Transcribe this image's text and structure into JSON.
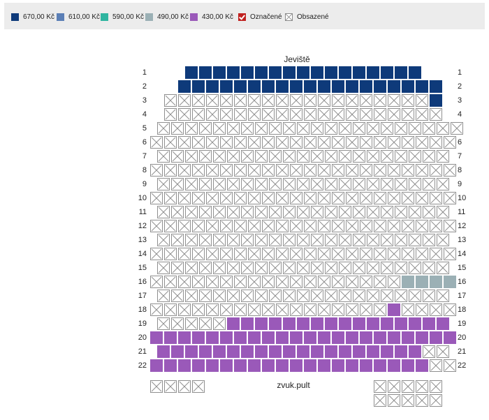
{
  "legend": {
    "items": [
      {
        "label": "670,00 Kč",
        "color": "#0e3a7a",
        "kind": "price",
        "icon": "price-swatch"
      },
      {
        "label": "610,00 Kč",
        "color": "#5b7fb6",
        "kind": "price",
        "icon": "price-swatch"
      },
      {
        "label": "590,00 Kč",
        "color": "#2fb5a0",
        "kind": "price",
        "icon": "price-swatch"
      },
      {
        "label": "490,00 Kč",
        "color": "#9bb0b5",
        "kind": "price",
        "icon": "price-swatch"
      },
      {
        "label": "430,00 Kč",
        "color": "#9a59b9",
        "kind": "price",
        "icon": "price-swatch"
      },
      {
        "label": "Označené",
        "color": "#c0211f",
        "kind": "selected",
        "icon": "check-icon"
      },
      {
        "label": "Obsazené",
        "color": "#ffffff",
        "kind": "occupied",
        "icon": "occupied-icon"
      }
    ]
  },
  "stage_label": "Jeviště",
  "sound_desk_label": "zvuk.pult",
  "rows": [
    {
      "label": "1",
      "seats": "BBBBBBBBBBBBBBBBB"
    },
    {
      "label": "2",
      "seats": "BBBBBBBBBBBBBBBBBBB"
    },
    {
      "label": "3",
      "seats": "XXXXXXXXXXXXXXXXXXXB"
    },
    {
      "label": "4",
      "seats": "XXXXXXXXXXXXXXXXXXXX"
    },
    {
      "label": "5",
      "seats": "XXXXXXXXXXXXXXXXXXXXXX"
    },
    {
      "label": "6",
      "seats": "XXXXXXXXXXXXXXXXXXXXXX"
    },
    {
      "label": "7",
      "seats": "XXXXXXXXXXXXXXXXXXXXX"
    },
    {
      "label": "8",
      "seats": "XXXXXXXXXXXXXXXXXXXXXX"
    },
    {
      "label": "9",
      "seats": "XXXXXXXXXXXXXXXXXXXXX"
    },
    {
      "label": "10",
      "seats": "XXXXXXXXXXXXXXXXXXXXXX"
    },
    {
      "label": "11",
      "seats": "XXXXXXXXXXXXXXXXXXXXX"
    },
    {
      "label": "12",
      "seats": "XXXXXXXXXXXXXXXXXXXXXX"
    },
    {
      "label": "13",
      "seats": "XXXXXXXXXXXXXXXXXXXXX"
    },
    {
      "label": "14",
      "seats": "XXXXXXXXXXXXXXXXXXXXXX"
    },
    {
      "label": "15",
      "seats": "XXXXXXXXXXXXXXXXXXXXX"
    },
    {
      "label": "16",
      "seats": "XXXXXXXXXXXXXXXXXXGGGG"
    },
    {
      "label": "17",
      "seats": "XXXXXXXXXXXXXXXXXXXXX"
    },
    {
      "label": "18",
      "seats": "XXXXXXXXXXXXXXXXXPXXXX"
    },
    {
      "label": "19",
      "seats": "XXXXXPPPPPPPPPPPPPPPP"
    },
    {
      "label": "20",
      "seats": "PPPPPPPPPPPPPPPPPPPPPP"
    },
    {
      "label": "21",
      "seats": "PPPPPPPPPPPPPPPPPPPXX"
    },
    {
      "label": "22",
      "seats": "PPPPPPPPPPPPPPPPPPPPXX"
    }
  ],
  "extra_blocks": [
    {
      "name": "left-extra",
      "count": 4
    },
    {
      "name": "right-extra-top",
      "count": 5
    },
    {
      "name": "right-extra-bottom",
      "count": 5
    }
  ],
  "seat_colors": {
    "B": "#0e3a7a",
    "G": "#9bb0b5",
    "P": "#9a59b9"
  }
}
